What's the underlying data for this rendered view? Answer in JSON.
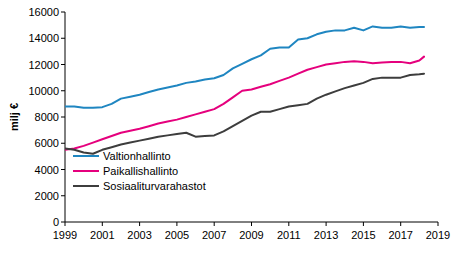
{
  "chart_data": {
    "type": "line",
    "y_label": "milj €",
    "x": [
      1999,
      1999.5,
      2000,
      2000.5,
      2001,
      2001.5,
      2002,
      2002.5,
      2003,
      2003.5,
      2004,
      2004.5,
      2005,
      2005.5,
      2006,
      2006.5,
      2007,
      2007.5,
      2008,
      2008.5,
      2009,
      2009.5,
      2010,
      2010.5,
      2011,
      2011.5,
      2012,
      2012.5,
      2013,
      2013.5,
      2014,
      2014.5,
      2015,
      2015.5,
      2016,
      2016.5,
      2017,
      2017.5,
      2018,
      2018.25
    ],
    "series": [
      {
        "name": "Valtionhallinto",
        "color": "#1f86c1",
        "values": [
          8800,
          8800,
          8700,
          8700,
          8750,
          9000,
          9400,
          9550,
          9700,
          9900,
          10100,
          10250,
          10400,
          10600,
          10700,
          10850,
          10950,
          11200,
          11700,
          12050,
          12400,
          12700,
          13200,
          13300,
          13300,
          13900,
          14000,
          14300,
          14500,
          14600,
          14600,
          14800,
          14600,
          14900,
          14800,
          14800,
          14900,
          14800,
          14850,
          14850
        ]
      },
      {
        "name": "Paikallishallinto",
        "color": "#e5007d",
        "values": [
          5500,
          5600,
          5800,
          6050,
          6300,
          6550,
          6800,
          6950,
          7100,
          7300,
          7500,
          7650,
          7800,
          8000,
          8200,
          8400,
          8600,
          9000,
          9500,
          10000,
          10100,
          10300,
          10500,
          10750,
          11000,
          11300,
          11600,
          11800,
          12000,
          12100,
          12200,
          12250,
          12200,
          12100,
          12150,
          12200,
          12200,
          12100,
          12300,
          12600
        ]
      },
      {
        "name": "Sosiaaliturvarahastot",
        "color": "#3d3d3d",
        "values": [
          5600,
          5500,
          5300,
          5200,
          5500,
          5700,
          5900,
          6050,
          6200,
          6350,
          6500,
          6600,
          6700,
          6800,
          6500,
          6550,
          6600,
          6900,
          7300,
          7700,
          8100,
          8400,
          8400,
          8600,
          8800,
          8900,
          9000,
          9400,
          9700,
          9950,
          10200,
          10400,
          10600,
          10900,
          11000,
          11000,
          11000,
          11200,
          11250,
          11300
        ]
      }
    ],
    "xlim": [
      1999,
      2019
    ],
    "xticks": [
      1999,
      2001,
      2003,
      2005,
      2007,
      2009,
      2011,
      2013,
      2015,
      2017,
      2019
    ],
    "ylim": [
      0,
      16000
    ],
    "yticks": [
      0,
      2000,
      4000,
      6000,
      8000,
      10000,
      12000,
      14000,
      16000
    ],
    "grid": false,
    "legend": "lower left"
  }
}
